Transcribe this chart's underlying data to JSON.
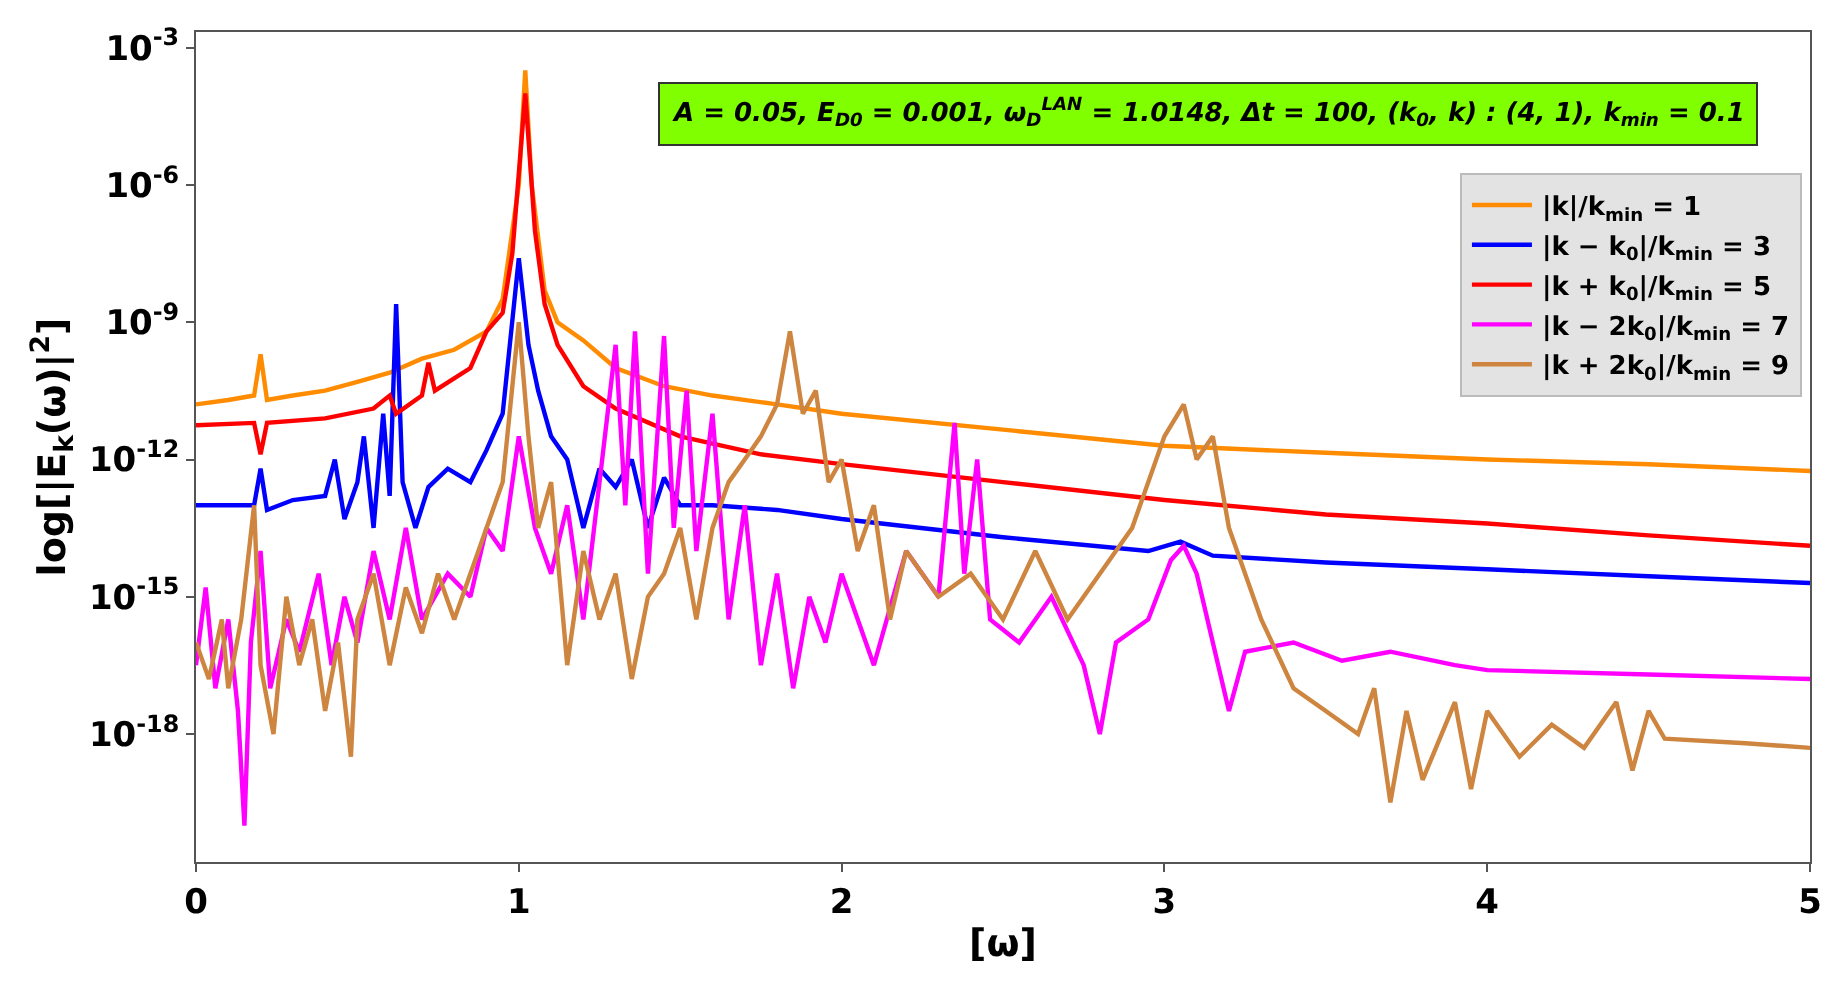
{
  "chart_data": {
    "type": "line",
    "xlabel": "[ω]",
    "ylabel": "log[|E$_{k}$(ω)|$^{2}$]",
    "log": "y",
    "legend": "right",
    "marker": "none",
    "line_style": "solid",
    "annotations": [
      "A = 0.05, E$_{D0}$ = 0.001, ω$_{D}$$^{LAN}$ = 1.0148, Δt = 100, (k$_{0}$, k) : (4, 1), k$_{min}$ = 0.1"
    ],
    "xlim": [
      0,
      5
    ],
    "xticks": [
      0,
      1,
      2,
      3,
      4,
      5
    ],
    "ylim": [
      1.6e-21,
      0.0022
    ],
    "yticks": [
      {
        "value": 1e-18,
        "label": "10$^{-18}$"
      },
      {
        "value": 1e-15,
        "label": "10$^{-15}$"
      },
      {
        "value": 1e-12,
        "label": "10$^{-12}$"
      },
      {
        "value": 1e-09,
        "label": "10$^{-9}$"
      },
      {
        "value": 1e-06,
        "label": "10$^{-6}$"
      },
      {
        "value": 0.001,
        "label": "10$^{-3}$"
      }
    ],
    "series": [
      {
        "name": "|k|/k$_{min}$ = 1",
        "color": "#ff8c00",
        "x": [
          0,
          0.1,
          0.18,
          0.2,
          0.22,
          0.3,
          0.4,
          0.5,
          0.6,
          0.7,
          0.8,
          0.9,
          0.95,
          1.0,
          1.02,
          1.04,
          1.08,
          1.12,
          1.2,
          1.3,
          1.45,
          1.6,
          1.8,
          2,
          2.5,
          3,
          3.5,
          4,
          4.5,
          5
        ],
        "values": [
          1.6e-11,
          2e-11,
          2.5e-11,
          2e-10,
          2e-11,
          2.5e-11,
          3.2e-11,
          5e-11,
          7.9e-11,
          1.6e-10,
          2.5e-10,
          6.3e-10,
          3.2e-09,
          1e-06,
          0.00032,
          1e-06,
          5e-09,
          1e-09,
          4e-10,
          1e-10,
          4e-11,
          2.5e-11,
          1.6e-11,
          1e-11,
          4.5e-12,
          2e-12,
          1.4e-12,
          1e-12,
          7.9e-13,
          5.6e-13
        ]
      },
      {
        "name": "|k − k$_{0}$|/k$_{min}$ = 3",
        "color": "#0000ff",
        "x": [
          0,
          0.1,
          0.18,
          0.2,
          0.22,
          0.3,
          0.4,
          0.43,
          0.46,
          0.5,
          0.52,
          0.55,
          0.58,
          0.6,
          0.62,
          0.64,
          0.68,
          0.72,
          0.78,
          0.85,
          0.9,
          0.95,
          1.0,
          1.03,
          1.06,
          1.1,
          1.15,
          1.2,
          1.25,
          1.3,
          1.35,
          1.4,
          1.45,
          1.5,
          1.6,
          1.8,
          2,
          2.5,
          2.95,
          3.05,
          3.15,
          3.5,
          4,
          4.5,
          5
        ],
        "values": [
          1e-13,
          1e-13,
          1e-13,
          6.3e-13,
          7.9e-14,
          1.3e-13,
          1.6e-13,
          1e-12,
          5e-14,
          3.2e-13,
          3.2e-12,
          3.2e-14,
          1e-11,
          1.6e-13,
          2.5e-09,
          3.2e-13,
          3.2e-14,
          2.5e-13,
          6.3e-13,
          3.2e-13,
          1.6e-12,
          1e-11,
          2.5e-08,
          3.2e-10,
          3.2e-11,
          3.2e-12,
          1e-12,
          3.2e-14,
          6.3e-13,
          2.5e-13,
          1e-12,
          3.2e-14,
          4e-13,
          1e-13,
          1e-13,
          7.9e-14,
          5e-14,
          2e-14,
          1e-14,
          1.6e-14,
          7.9e-15,
          5.6e-15,
          4e-15,
          2.8e-15,
          2e-15
        ]
      },
      {
        "name": "|k + k$_{0}$|/k$_{min}$ = 5",
        "color": "#ff0000",
        "x": [
          0,
          0.18,
          0.2,
          0.22,
          0.4,
          0.55,
          0.6,
          0.62,
          0.7,
          0.72,
          0.74,
          0.85,
          0.9,
          0.95,
          0.98,
          1.02,
          1.05,
          1.08,
          1.12,
          1.2,
          1.3,
          1.5,
          1.75,
          2,
          2.5,
          3,
          3.5,
          4,
          4.5,
          5
        ],
        "values": [
          5.6e-12,
          6.3e-12,
          1.3e-12,
          6.3e-12,
          7.9e-12,
          1.3e-11,
          2.5e-11,
          1e-11,
          2.5e-11,
          1.3e-10,
          3.2e-11,
          1e-10,
          6.3e-10,
          1.6e-09,
          3.2e-08,
          0.0001,
          1e-07,
          2.5e-09,
          3.2e-10,
          4e-11,
          1.3e-11,
          3.2e-12,
          1.3e-12,
          7.9e-13,
          3.2e-13,
          1.3e-13,
          6.3e-14,
          4e-14,
          2.2e-14,
          1.3e-14
        ]
      },
      {
        "name": "|k − 2k$_{0}$|/k$_{min}$ = 7",
        "color": "#ff00ff",
        "x": [
          0,
          0.03,
          0.06,
          0.1,
          0.13,
          0.15,
          0.17,
          0.2,
          0.23,
          0.28,
          0.32,
          0.38,
          0.42,
          0.46,
          0.5,
          0.55,
          0.6,
          0.65,
          0.7,
          0.78,
          0.85,
          0.9,
          0.95,
          1.0,
          1.05,
          1.1,
          1.15,
          1.2,
          1.25,
          1.3,
          1.33,
          1.36,
          1.4,
          1.45,
          1.48,
          1.52,
          1.55,
          1.6,
          1.65,
          1.7,
          1.75,
          1.8,
          1.85,
          1.9,
          1.95,
          2.0,
          2.1,
          2.2,
          2.3,
          2.35,
          2.38,
          2.42,
          2.46,
          2.55,
          2.65,
          2.75,
          2.8,
          2.85,
          2.95,
          3.02,
          3.06,
          3.1,
          3.15,
          3.2,
          3.25,
          3.4,
          3.55,
          3.7,
          3.9,
          4.0,
          4.5,
          5
        ],
        "values": [
          3.2e-17,
          1.6e-15,
          1e-17,
          3.2e-16,
          3.2e-18,
          1e-20,
          1e-16,
          1e-14,
          1e-17,
          3.2e-16,
          6.3e-17,
          3.2e-15,
          3.2e-17,
          1e-15,
          1e-16,
          1e-14,
          3.2e-16,
          3.2e-14,
          3.2e-16,
          3.2e-15,
          1e-15,
          3.2e-14,
          1e-14,
          3.2e-12,
          3.2e-14,
          3.2e-15,
          1e-13,
          3.2e-16,
          3.2e-13,
          3.2e-10,
          1e-13,
          6.3e-10,
          3.2e-15,
          5e-10,
          3.2e-14,
          3.2e-11,
          1e-14,
          1e-11,
          3.2e-16,
          1e-13,
          3.2e-17,
          3.2e-15,
          1e-17,
          1e-15,
          1e-16,
          3.2e-15,
          3.2e-17,
          1e-14,
          1e-15,
          6.3e-12,
          3.2e-15,
          1e-12,
          3.2e-16,
          1e-16,
          1e-15,
          3.2e-17,
          1e-18,
          1e-16,
          3.2e-16,
          6.3e-15,
          1.3e-14,
          3.2e-15,
          1e-16,
          3.2e-18,
          6.3e-17,
          1e-16,
          4e-17,
          6.3e-17,
          3.2e-17,
          2.5e-17,
          2e-17,
          1.6e-17
        ]
      },
      {
        "name": "|k + 2k$_{0}$|/k$_{min}$ = 9",
        "color": "#cd853f",
        "x": [
          0,
          0.04,
          0.08,
          0.1,
          0.14,
          0.18,
          0.2,
          0.24,
          0.28,
          0.32,
          0.36,
          0.4,
          0.44,
          0.48,
          0.5,
          0.55,
          0.6,
          0.65,
          0.7,
          0.75,
          0.8,
          0.85,
          0.9,
          0.95,
          1.0,
          1.03,
          1.06,
          1.1,
          1.15,
          1.2,
          1.25,
          1.3,
          1.35,
          1.4,
          1.45,
          1.5,
          1.55,
          1.6,
          1.65,
          1.7,
          1.75,
          1.8,
          1.84,
          1.88,
          1.92,
          1.96,
          2.0,
          2.05,
          2.1,
          2.15,
          2.2,
          2.3,
          2.4,
          2.5,
          2.6,
          2.7,
          2.8,
          2.9,
          2.95,
          3.0,
          3.06,
          3.1,
          3.15,
          3.2,
          3.3,
          3.4,
          3.5,
          3.6,
          3.65,
          3.7,
          3.75,
          3.8,
          3.9,
          3.95,
          4.0,
          4.1,
          4.2,
          4.3,
          4.4,
          4.45,
          4.5,
          4.55,
          4.8,
          5.0
        ],
        "values": [
          1e-16,
          1.6e-17,
          3.2e-16,
          1e-17,
          3.2e-16,
          1e-13,
          3.2e-17,
          1e-18,
          1e-15,
          3.2e-17,
          3.2e-16,
          3.2e-18,
          1e-16,
          3.2e-19,
          3.2e-16,
          3.2e-15,
          3.2e-17,
          1.6e-15,
          1.6e-16,
          3.2e-15,
          3.2e-16,
          3.2e-15,
          3.2e-14,
          3.2e-13,
          1e-09,
          3.2e-12,
          3.2e-14,
          3.2e-13,
          3.2e-17,
          1e-14,
          3.2e-16,
          3.2e-15,
          1.6e-17,
          1e-15,
          3.2e-15,
          3.2e-14,
          3.2e-16,
          3.2e-14,
          3.2e-13,
          1e-12,
          3.2e-12,
          1.6e-11,
          6.3e-10,
          1e-11,
          3.2e-11,
          3.2e-13,
          1e-12,
          1e-14,
          1e-13,
          3.2e-16,
          1e-14,
          1e-15,
          3.2e-15,
          3.2e-16,
          1e-14,
          3.2e-16,
          3.2e-15,
          3.2e-14,
          3.2e-13,
          3.2e-12,
          1.6e-11,
          1e-12,
          3.2e-12,
          3.2e-14,
          3.2e-16,
          1e-17,
          3.2e-18,
          1e-18,
          1e-17,
          3.2e-20,
          3.2e-18,
          1e-19,
          5e-18,
          6.3e-20,
          3.2e-18,
          3.2e-19,
          1.6e-18,
          5e-19,
          5e-18,
          1.6e-19,
          3.2e-18,
          7.9e-19,
          6.3e-19,
          5e-19
        ]
      }
    ]
  }
}
